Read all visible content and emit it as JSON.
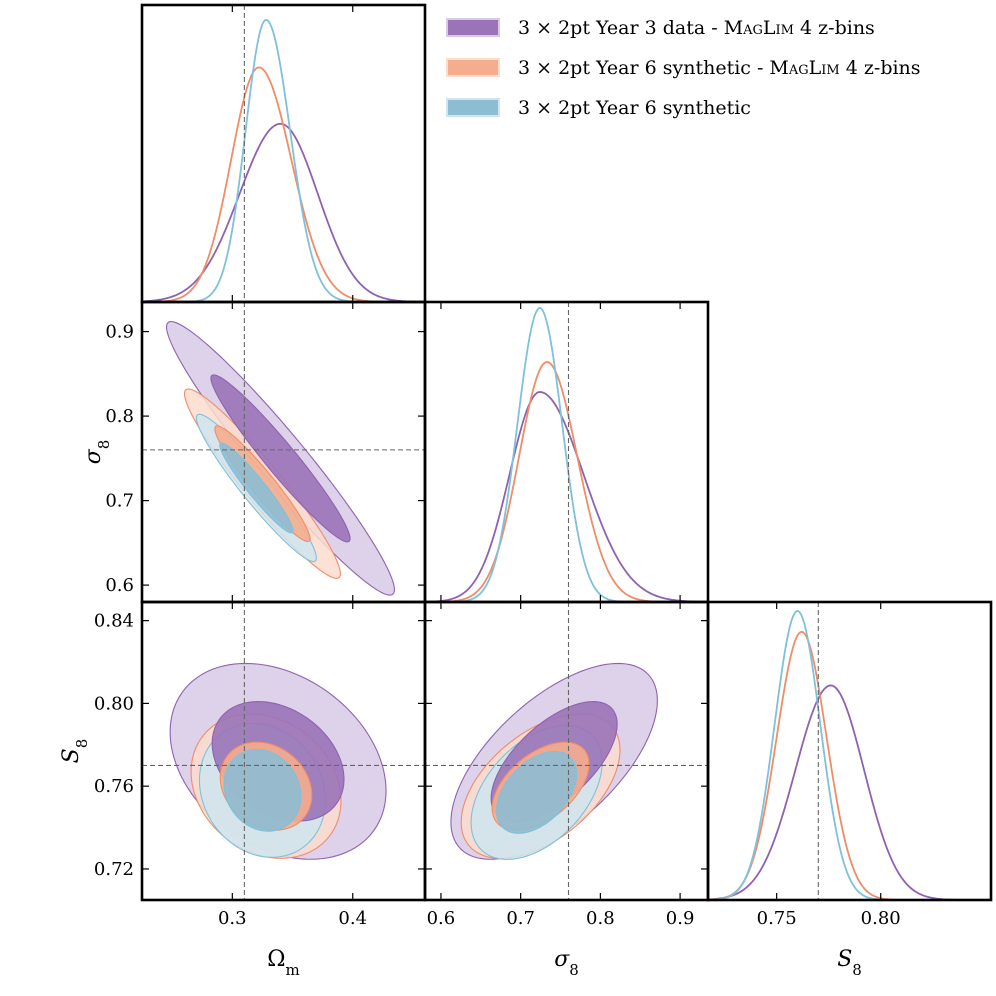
{
  "chart_data": {
    "type": "corner",
    "title": "",
    "parameters": [
      {
        "key": "omega_m",
        "label": "Ω",
        "label_sub": "m",
        "range": [
          0.225,
          0.46
        ],
        "ticks": [
          0.3,
          0.4
        ],
        "tick_labels": [
          "0.3",
          "0.4"
        ],
        "fiducial": 0.31
      },
      {
        "key": "sigma_8",
        "label": "σ",
        "label_sub": "8",
        "range": [
          0.58,
          0.935
        ],
        "ticks": [
          0.6,
          0.7,
          0.8,
          0.9
        ],
        "tick_labels": [
          "0.6",
          "0.7",
          "0.8",
          "0.9"
        ],
        "fiducial": 0.76
      },
      {
        "key": "S_8",
        "label": "S",
        "label_sub": "8",
        "range": [
          0.705,
          0.849
        ],
        "ticks": [
          0.72,
          0.76,
          0.8,
          0.84
        ],
        "tick_labels": [
          "0.72",
          "0.76",
          "0.80",
          "0.84"
        ],
        "fiducial": 0.77
      }
    ],
    "s8_diag_axis": {
      "range": [
        0.717,
        0.853
      ],
      "ticks": [
        0.75,
        0.8
      ],
      "tick_labels": [
        "0.75",
        "0.80"
      ]
    },
    "legend": {
      "placement": "top-right"
    },
    "series": [
      {
        "name": "3 × 2pt Year 3 data - MagLim 4 z-bins",
        "legend_prefix": "3 × 2pt Year 3 data - ",
        "legend_smallcaps": "MagLim",
        "legend_suffix": " 4 z-bins",
        "color": "#8e62b0",
        "fill_inner": "#9a73b8",
        "fill_outer": "#d8c9e6",
        "marginals": {
          "omega_m": {
            "peak": 0.34,
            "sd_left": 0.034,
            "sd_right": 0.031,
            "height": 0.6
          },
          "sigma_8": {
            "peak": 0.724,
            "sd_left": 0.038,
            "sd_right": 0.055,
            "height": 0.7
          },
          "S_8": {
            "peak": 0.776,
            "sd_left": 0.017,
            "sd_right": 0.016,
            "height": 0.72
          }
        },
        "contours_2d": [
          {
            "pair": [
              "omega_m",
              "sigma_8"
            ],
            "center": [
              0.34,
              0.75
            ],
            "sd": [
              0.038,
              0.065
            ],
            "rho": -0.96
          },
          {
            "pair": [
              "omega_m",
              "S_8"
            ],
            "center": [
              0.338,
              0.772
            ],
            "sd": [
              0.036,
              0.019
            ],
            "rho": -0.3
          },
          {
            "pair": [
              "sigma_8",
              "S_8"
            ],
            "center": [
              0.742,
              0.772
            ],
            "sd": [
              0.052,
              0.019
            ],
            "rho": 0.62
          }
        ]
      },
      {
        "name": "3 × 2pt Year 6 synthetic - MagLim 4 z-bins",
        "legend_prefix": "3 × 2pt Year 6 synthetic - ",
        "legend_smallcaps": "MagLim",
        "legend_suffix": " 4 z-bins",
        "color": "#f08c68",
        "fill_inner": "#f5ad8e",
        "fill_outer": "#fbdccd",
        "marginals": {
          "omega_m": {
            "peak": 0.322,
            "sd_left": 0.023,
            "sd_right": 0.027,
            "height": 0.79
          },
          "sigma_8": {
            "peak": 0.733,
            "sd_left": 0.035,
            "sd_right": 0.038,
            "height": 0.8
          },
          "S_8": {
            "peak": 0.762,
            "sd_left": 0.012,
            "sd_right": 0.012,
            "height": 0.9
          }
        },
        "contours_2d": [
          {
            "pair": [
              "omega_m",
              "sigma_8"
            ],
            "center": [
              0.325,
              0.72
            ],
            "sd": [
              0.026,
              0.045
            ],
            "rho": -0.95
          },
          {
            "pair": [
              "omega_m",
              "S_8"
            ],
            "center": [
              0.328,
              0.76
            ],
            "sd": [
              0.025,
              0.014
            ],
            "rho": -0.2
          },
          {
            "pair": [
              "sigma_8",
              "S_8"
            ],
            "center": [
              0.725,
              0.76
            ],
            "sd": [
              0.04,
              0.014
            ],
            "rho": 0.5
          }
        ]
      },
      {
        "name": "3 × 2pt Year 6 synthetic",
        "legend_prefix": "3 × 2pt Year 6 synthetic",
        "legend_smallcaps": "",
        "legend_suffix": "",
        "color": "#7fc0da",
        "fill_inner": "#8dbdd3",
        "fill_outer": "#cfe5ef",
        "marginals": {
          "omega_m": {
            "peak": 0.328,
            "sd_left": 0.017,
            "sd_right": 0.02,
            "height": 0.95
          },
          "sigma_8": {
            "peak": 0.724,
            "sd_left": 0.028,
            "sd_right": 0.028,
            "height": 0.98
          },
          "S_8": {
            "peak": 0.76,
            "sd_left": 0.011,
            "sd_right": 0.011,
            "height": 0.97
          }
        },
        "contours_2d": [
          {
            "pair": [
              "omega_m",
              "sigma_8"
            ],
            "center": [
              0.32,
              0.715
            ],
            "sd": [
              0.02,
              0.035
            ],
            "rho": -0.95
          },
          {
            "pair": [
              "omega_m",
              "S_8"
            ],
            "center": [
              0.325,
              0.758
            ],
            "sd": [
              0.021,
              0.013
            ],
            "rho": -0.15
          },
          {
            "pair": [
              "sigma_8",
              "S_8"
            ],
            "center": [
              0.72,
              0.757
            ],
            "sd": [
              0.033,
              0.013
            ],
            "rho": 0.45
          }
        ]
      }
    ]
  }
}
